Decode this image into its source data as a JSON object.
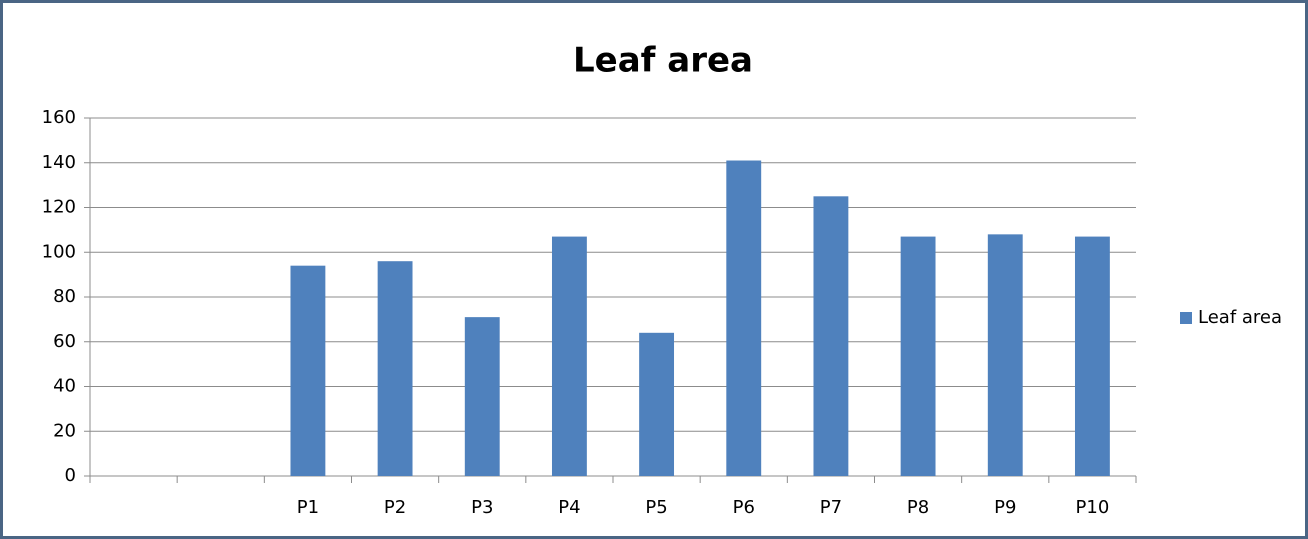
{
  "chart_data": {
    "type": "bar",
    "title": "Leaf area",
    "categories": [
      null,
      null,
      "P1",
      "P2",
      "P3",
      "P4",
      "P5",
      "P6",
      "P7",
      "P8",
      "P9",
      "P10"
    ],
    "series": [
      {
        "name": "Leaf area",
        "color": "#4f81bd",
        "values": [
          null,
          null,
          94,
          96,
          71,
          107,
          64,
          141,
          125,
          107,
          108,
          107
        ]
      }
    ],
    "ylim": [
      0,
      160
    ],
    "yticks": [
      0,
      20,
      40,
      60,
      80,
      100,
      120,
      140,
      160
    ],
    "grid": true,
    "legend": "right"
  }
}
